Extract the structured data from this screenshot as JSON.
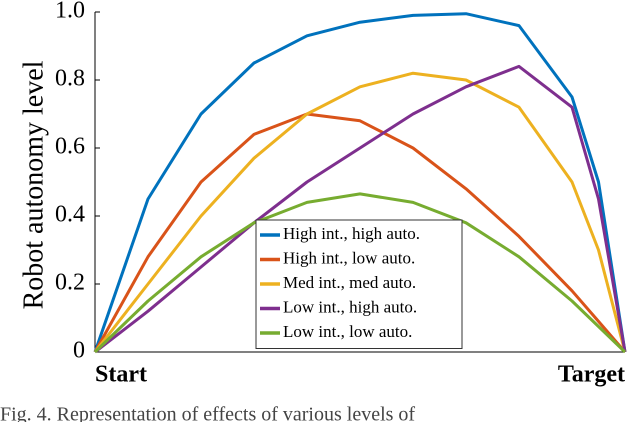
{
  "chart_data": {
    "type": "line",
    "y_label": "Robot autonomy level",
    "caption": "Fig. 4. Representation of effects of various levels of",
    "x": [
      0,
      0.1,
      0.2,
      0.3,
      0.4,
      0.5,
      0.6,
      0.7,
      0.8,
      0.9,
      0.95,
      1
    ],
    "xlim": [
      0,
      1
    ],
    "xticks": [
      {
        "value": 0,
        "label": "Start"
      },
      {
        "value": 1,
        "label": "Target"
      }
    ],
    "ylim": [
      0,
      1
    ],
    "yticks": [
      0,
      0.2,
      0.4,
      0.6,
      0.8,
      {
        "value": 1,
        "label": "1.0"
      }
    ],
    "legend": "bottom-center",
    "series": [
      {
        "name": "High int., high auto.",
        "color": "#0072bd",
        "values": [
          0,
          0.45,
          0.7,
          0.85,
          0.93,
          0.97,
          0.99,
          0.995,
          0.96,
          0.75,
          0.5,
          0
        ]
      },
      {
        "name": "High int., low auto.",
        "color": "#d95319",
        "values": [
          0,
          0.28,
          0.5,
          0.64,
          0.7,
          0.68,
          0.6,
          0.48,
          0.34,
          0.18,
          0.09,
          0
        ]
      },
      {
        "name": "Med int., med auto.",
        "color": "#edb120",
        "values": [
          0,
          0.2,
          0.4,
          0.57,
          0.7,
          0.78,
          0.82,
          0.8,
          0.72,
          0.5,
          0.3,
          0
        ]
      },
      {
        "name": "Low int., high auto.",
        "color": "#7e2f8e",
        "values": [
          0,
          0.12,
          0.25,
          0.38,
          0.5,
          0.6,
          0.7,
          0.78,
          0.84,
          0.72,
          0.45,
          0
        ]
      },
      {
        "name": "Low int., low auto.",
        "color": "#77ac30",
        "values": [
          0,
          0.15,
          0.28,
          0.38,
          0.44,
          0.465,
          0.44,
          0.38,
          0.28,
          0.15,
          0.075,
          0
        ]
      }
    ]
  }
}
